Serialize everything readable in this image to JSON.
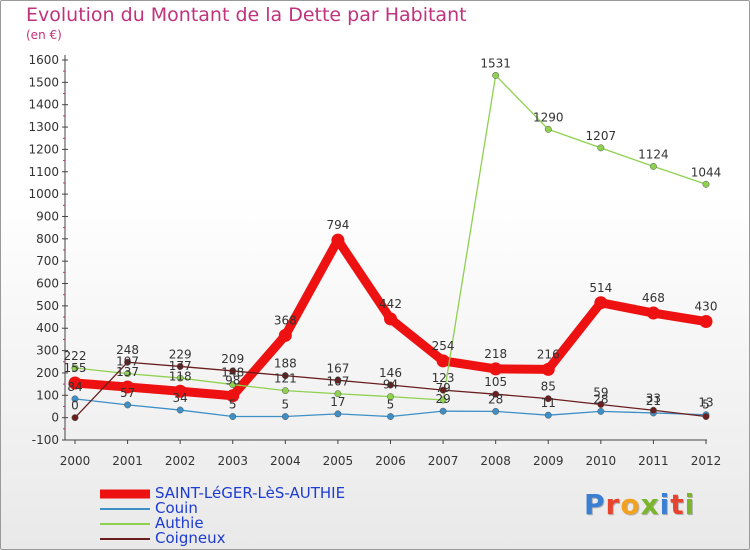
{
  "header": {
    "title": "Evolution du Montant de la Dette par Habitant",
    "unit": "(en €)"
  },
  "brand": {
    "logo_text": "Proxiti",
    "letter_colors": [
      "#3a7fd1",
      "#e8432d",
      "#f2a21f",
      "#7ab52b",
      "#3a7fd1",
      "#e8432d",
      "#7ab52b"
    ]
  },
  "colors": {
    "accent": "#c0337c",
    "legend_text": "#1d3bd1"
  },
  "chart_data": {
    "type": "line",
    "title": "Evolution du Montant de la Dette par Habitant",
    "subtitle": "(en €)",
    "x": [
      2000,
      2001,
      2002,
      2003,
      2004,
      2005,
      2006,
      2007,
      2008,
      2009,
      2010,
      2011,
      2012
    ],
    "ylim": [
      -100,
      1600
    ],
    "yticks": [
      -100,
      0,
      100,
      200,
      300,
      400,
      500,
      600,
      700,
      800,
      900,
      1000,
      1100,
      1200,
      1300,
      1400,
      1500,
      1600
    ],
    "grid": false,
    "legend_position": "bottom-left",
    "series": [
      {
        "name": "SAINT-LéGER-LèS-AUTHIE",
        "color": "#ee1111",
        "emphasis": true,
        "values": [
          155,
          137,
          118,
          98,
          368,
          794,
          442,
          254,
          218,
          216,
          514,
          468,
          430
        ],
        "labels": [
          "155",
          "137",
          "118",
          "98",
          "368",
          "794",
          "442",
          "254",
          "218",
          "216",
          "514",
          "468",
          "430"
        ]
      },
      {
        "name": "Couin",
        "color": "#3d8fc6",
        "values": [
          84,
          57,
          34,
          5,
          5,
          17,
          5,
          29,
          28,
          11,
          28,
          21,
          13
        ],
        "labels": [
          "84",
          "57",
          "34",
          "5",
          "5",
          "17",
          "5",
          "29",
          "28",
          "11",
          "28",
          "21",
          "13"
        ]
      },
      {
        "name": "Authie",
        "color": "#8ed14f",
        "values": [
          222,
          197,
          177,
          148,
          121,
          107,
          94,
          79,
          1531,
          1290,
          1207,
          1124,
          1044
        ],
        "labels": [
          "222",
          "197",
          "177",
          "148",
          "121",
          "107",
          "94",
          "79",
          "1531",
          "1290",
          "1207",
          "1124",
          "1044"
        ]
      },
      {
        "name": "Coigneux",
        "color": "#6b1e1e",
        "values": [
          0,
          248,
          229,
          209,
          188,
          167,
          146,
          123,
          105,
          85,
          59,
          33,
          5
        ],
        "labels": [
          "0",
          "248",
          "229",
          "209",
          "188",
          "167",
          "146",
          "123",
          "105",
          "85",
          "59",
          "33",
          "5"
        ]
      }
    ]
  }
}
